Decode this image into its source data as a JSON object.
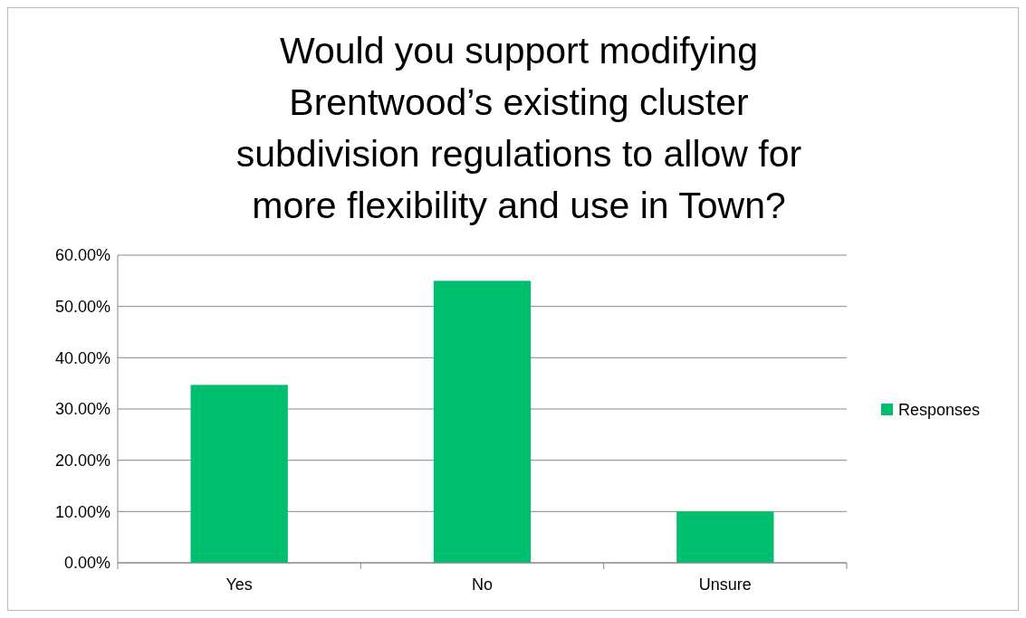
{
  "chart_data": {
    "type": "bar",
    "title": "Would you support modifying Brentwood’s existing cluster subdivision regulations to allow for more flexibility and use in Town?",
    "categories": [
      "Yes",
      "No",
      "Unsure"
    ],
    "series": [
      {
        "name": "Responses",
        "color": "#00c06f",
        "values": [
          34.7,
          55.0,
          10.0
        ]
      }
    ],
    "ylim": [
      0,
      60
    ],
    "yticks": [
      {
        "value": 0,
        "label": "0.00%"
      },
      {
        "value": 10,
        "label": "10.00%"
      },
      {
        "value": 20,
        "label": "20.00%"
      },
      {
        "value": 30,
        "label": "30.00%"
      },
      {
        "value": 40,
        "label": "40.00%"
      },
      {
        "value": 50,
        "label": "50.00%"
      },
      {
        "value": 60,
        "label": "60.00%"
      }
    ],
    "grid": "y",
    "legend": "right"
  }
}
